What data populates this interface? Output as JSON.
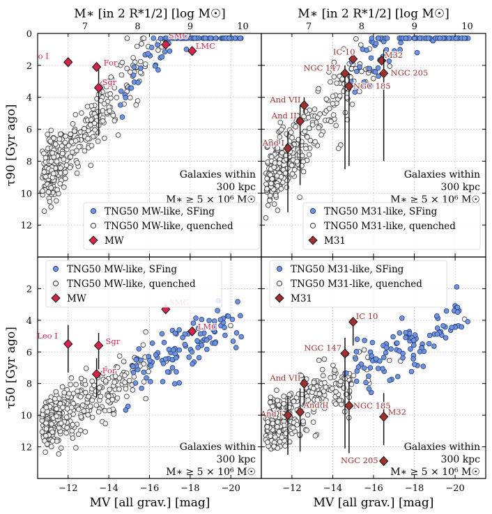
{
  "chart_data": {
    "type": "scatter",
    "shared": {
      "x_top_label": "M∗ [in 2 R*1/2] [log M☉]",
      "x_top_ticks": [
        "7",
        "8",
        "9",
        "10"
      ],
      "x_top_values": [
        7,
        8,
        9,
        10
      ],
      "x_bottom_label": "MV [all grav.] [mag]",
      "x_bottom_ticks": [
        "−12",
        "−14",
        "−16",
        "−18",
        "−20"
      ],
      "x_bottom_values": [
        -12,
        -14,
        -16,
        -18,
        -20
      ],
      "xlim_mag": [
        -10.5,
        -21.5
      ],
      "xlim_logmass": [
        6.1,
        10.35
      ],
      "ylim": [
        14,
        0
      ],
      "y_ticks": [
        "0",
        "2",
        "4",
        "6",
        "8",
        "10",
        "12"
      ],
      "grid": "dotted",
      "annotation_lines": [
        "Galaxies within",
        "300 kpc",
        "M∗ ≥ 5 × 10⁶ M☉"
      ],
      "colors": {
        "sfing": "#6f93de",
        "quenched": "#f2f2f2",
        "mw": "#d6234a",
        "m31": "#a03030"
      }
    },
    "panels": [
      {
        "id": "mw-tau90",
        "ylabel": "τ90 [Gyr ago]",
        "legend": [
          "TNG50 MW-like, SFing",
          "TNG50 MW-like, quenched",
          "MW"
        ],
        "legend_position": "bottom-right",
        "seed": 11,
        "cloud": "tau90",
        "galaxies": [
          {
            "name": "Leo I",
            "mag": -12.0,
            "t": 1.8,
            "err": [
              0,
              0
            ]
          },
          {
            "name": "Fornax",
            "mag": -13.4,
            "t": 2.1,
            "err": [
              0,
              0
            ]
          },
          {
            "name": "Sgr",
            "mag": -13.5,
            "t": 3.4,
            "err": [
              1.2,
              3.0
            ]
          },
          {
            "name": "SMC",
            "mag": -16.8,
            "t": 0.7,
            "err": [
              0,
              0
            ]
          },
          {
            "name": "LMC",
            "mag": -18.1,
            "t": 1.1,
            "err": [
              0,
              0
            ]
          }
        ],
        "labels": [
          {
            "text": "Leo I",
            "for": "Leo I"
          },
          {
            "text": "For",
            "for": "Fornax"
          },
          {
            "text": "Sgr",
            "for": "Sgr"
          },
          {
            "text": "SMC",
            "for": "SMC"
          },
          {
            "text": "LMC",
            "for": "LMC"
          }
        ]
      },
      {
        "id": "m31-tau90",
        "ylabel": "",
        "legend": [
          "TNG50 M31-like, SFing",
          "TNG50 M31-like, quenched",
          "M31"
        ],
        "legend_position": "bottom-right",
        "seed": 23,
        "cloud": "tau90",
        "galaxies": [
          {
            "name": "IC 10",
            "mag": -15.0,
            "t": 1.6,
            "err": [
              0,
              0
            ]
          },
          {
            "name": "M32",
            "mag": -16.4,
            "t": 1.7,
            "err": [
              0,
              0
            ]
          },
          {
            "name": "NGC 147",
            "mag": -14.6,
            "t": 2.5,
            "err": [
              0.5,
              6.0
            ]
          },
          {
            "name": "NGC 205",
            "mag": -16.5,
            "t": 2.5,
            "err": [
              1.5,
              5.5
            ]
          },
          {
            "name": "NGC 185",
            "mag": -14.8,
            "t": 3.3,
            "err": [
              0.8,
              5.0
            ]
          },
          {
            "name": "And VII",
            "mag": -12.6,
            "t": 4.5,
            "err": [
              0.5,
              0.5
            ]
          },
          {
            "name": "And II",
            "mag": -12.4,
            "t": 5.5,
            "err": [
              1.0,
              4.0
            ]
          },
          {
            "name": "And I",
            "mag": -11.8,
            "t": 7.2,
            "err": [
              1.0,
              4.0
            ]
          }
        ],
        "labels": [
          {
            "text": "IC 10",
            "for": "IC 10"
          },
          {
            "text": "M32",
            "for": "M32"
          },
          {
            "text": "NGC 147",
            "for": "NGC 147"
          },
          {
            "text": "NGC 205",
            "for": "NGC 205"
          },
          {
            "text": "NGC 185",
            "for": "NGC 185"
          },
          {
            "text": "And VII",
            "for": "And VII"
          },
          {
            "text": "And II",
            "for": "And II"
          },
          {
            "text": "And I",
            "for": "And I"
          }
        ]
      },
      {
        "id": "mw-tau50",
        "ylabel": "τ50 [Gyr ago]",
        "legend": [
          "TNG50 MW-like, SFing",
          "TNG50 MW-like, quenched",
          "MW"
        ],
        "legend_position": "top-left",
        "seed": 37,
        "cloud": "tau50",
        "galaxies": [
          {
            "name": "Leo I",
            "mag": -12.0,
            "t": 5.5,
            "err": [
              1.2,
              1.8
            ]
          },
          {
            "name": "Fornax",
            "mag": -13.4,
            "t": 7.4,
            "err": [
              1.0,
              1.5
            ]
          },
          {
            "name": "Sgr",
            "mag": -13.5,
            "t": 5.6,
            "err": [
              0.8,
              1.5
            ]
          },
          {
            "name": "SMC",
            "mag": -16.8,
            "t": 3.3,
            "err": [
              0,
              0
            ]
          },
          {
            "name": "LMC",
            "mag": -18.1,
            "t": 4.7,
            "err": [
              0,
              0
            ]
          }
        ],
        "labels": [
          {
            "text": "Leo I",
            "for": "Leo I"
          },
          {
            "text": "For",
            "for": "Fornax"
          },
          {
            "text": "Sgr",
            "for": "Sgr"
          },
          {
            "text": "SMC",
            "for": "SMC"
          },
          {
            "text": "LMC",
            "for": "LMC"
          }
        ]
      },
      {
        "id": "m31-tau50",
        "ylabel": "",
        "legend": [
          "TNG50 M31-like, SFing",
          "TNG50 M31-like, quenched",
          "M31"
        ],
        "legend_position": "top-left",
        "seed": 53,
        "cloud": "tau50",
        "galaxies": [
          {
            "name": "IC 10",
            "mag": -15.0,
            "t": 4.1,
            "err": [
              0,
              1.5
            ]
          },
          {
            "name": "NGC 147",
            "mag": -14.6,
            "t": 6.1,
            "err": [
              1.0,
              6.0
            ]
          },
          {
            "name": "And VII",
            "mag": -12.6,
            "t": 8.0,
            "err": [
              0.5,
              1.5
            ]
          },
          {
            "name": "And II",
            "mag": -12.4,
            "t": 9.8,
            "err": [
              1.5,
              2.5
            ]
          },
          {
            "name": "NGC 185",
            "mag": -14.8,
            "t": 9.4,
            "err": [
              1.5,
              3.0
            ]
          },
          {
            "name": "And I",
            "mag": -11.8,
            "t": 10.0,
            "err": [
              1.2,
              2.5
            ]
          },
          {
            "name": "M32",
            "mag": -16.5,
            "t": 10.1,
            "err": [
              1.5,
              1.8
            ]
          },
          {
            "name": "NGC 205",
            "mag": -16.5,
            "t": 12.9,
            "err": [
              0,
              0
            ]
          }
        ],
        "labels": [
          {
            "text": "IC 10",
            "for": "IC 10"
          },
          {
            "text": "NGC 147",
            "for": "NGC 147"
          },
          {
            "text": "And VII",
            "for": "And VII"
          },
          {
            "text": "And II",
            "for": "And II"
          },
          {
            "text": "NGC 185",
            "for": "NGC 185"
          },
          {
            "text": "And I",
            "for": "And I"
          },
          {
            "text": "M32",
            "for": "M32"
          },
          {
            "text": "NGC 205",
            "for": "NGC 205"
          }
        ]
      }
    ]
  }
}
